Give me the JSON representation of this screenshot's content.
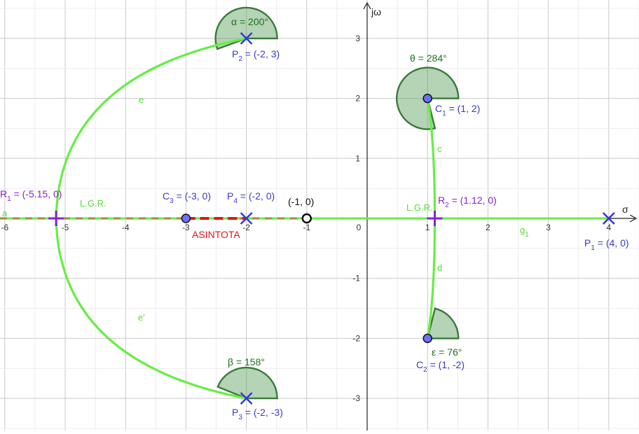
{
  "axes": {
    "x_label": "σ",
    "y_label": "jω",
    "x_ticks": [
      "-6",
      "-5",
      "-4",
      "-3",
      "-2",
      "-1",
      "0",
      "1",
      "2",
      "3",
      "4"
    ],
    "y_ticks": [
      "3",
      "2",
      "1",
      "-1",
      "-2",
      "-3"
    ]
  },
  "points": {
    "P1": {
      "label_main": "P",
      "label_sub": "1",
      "label_rest": " = (4, 0)",
      "x": 4,
      "y": 0,
      "kind": "pole"
    },
    "P2": {
      "label_main": "P",
      "label_sub": "2",
      "label_rest": " = (-2, 3)",
      "x": -2,
      "y": 3,
      "kind": "pole"
    },
    "P3": {
      "label_main": "P",
      "label_sub": "3",
      "label_rest": " = (-2, -3)",
      "x": -2,
      "y": -3,
      "kind": "pole"
    },
    "P4": {
      "label_main": "P",
      "label_sub": "4",
      "label_rest": " = (-2, 0)",
      "x": -2,
      "y": 0,
      "kind": "pole"
    },
    "C1": {
      "label_main": "C",
      "label_sub": "1",
      "label_rest": " = (1, 2)",
      "x": 1,
      "y": 2,
      "kind": "zero"
    },
    "C2": {
      "label_main": "C",
      "label_sub": "2",
      "label_rest": " = (1, -2)",
      "x": 1,
      "y": -2,
      "kind": "zero"
    },
    "C3": {
      "label_main": "C",
      "label_sub": "3",
      "label_rest": " = (-3, 0)",
      "x": -3,
      "y": 0,
      "kind": "zero"
    },
    "R1": {
      "label_main": "R",
      "label_sub": "1",
      "label_rest": " = (-5.15, 0)",
      "x": -5.15,
      "y": 0,
      "kind": "breakpoint"
    },
    "R2": {
      "label_main": "R",
      "label_sub": "2",
      "label_rest": " = (1.12, 0)",
      "x": 1.12,
      "y": 0,
      "kind": "breakpoint"
    },
    "M": {
      "label": "(-1, 0)",
      "x": -1,
      "y": 0,
      "kind": "open-point"
    }
  },
  "angles": {
    "alpha": {
      "label": "α = 200°"
    },
    "theta": {
      "label": "θ = 284°"
    },
    "beta": {
      "label": "β = 158°"
    },
    "epsilon": {
      "label": "ε = 76°"
    }
  },
  "curve_labels": {
    "e": "e",
    "e_prime": "e'",
    "c": "c",
    "d": "d",
    "g1_main": "g",
    "g1_sub": "1",
    "a": "a"
  },
  "annotations": {
    "lgr_left": "L.G.R.",
    "lgr_right": "L.G.R.",
    "asintota": "ASINTOTA"
  },
  "colors": {
    "locus": "#66ee44",
    "angle_fill": "#5c9e5c",
    "angle_stroke": "#3a7a3a",
    "angle_text": "#1f6f1f",
    "pole": "#3333ee",
    "label_blue": "#3a3acc",
    "breakpoint": "#8a1fd6",
    "asymptote": "#ee1111",
    "asymptote_dash2": "#a08a40",
    "grid_major": "#c8c8c8",
    "grid_minor": "#ececec"
  }
}
